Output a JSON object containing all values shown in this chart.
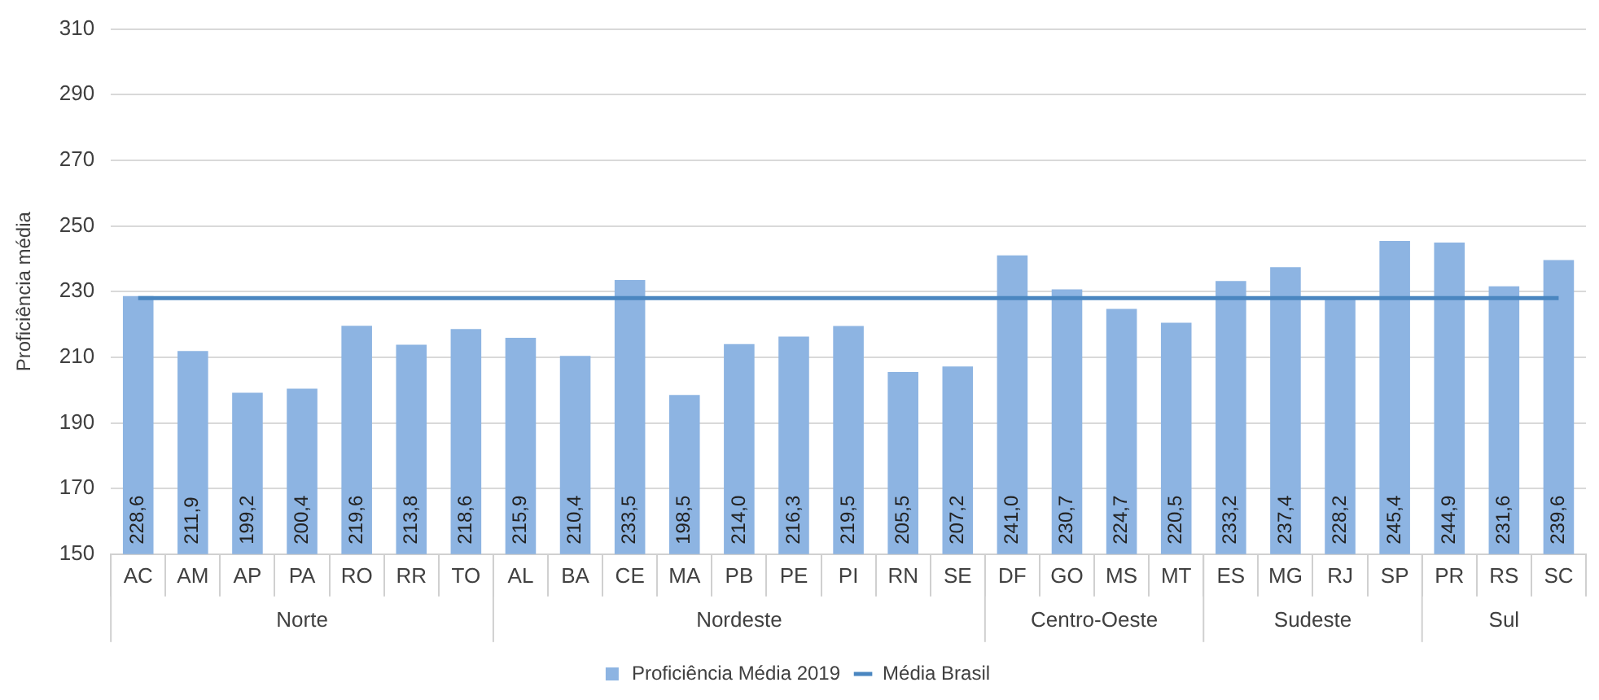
{
  "chart_data": {
    "type": "bar",
    "ylabel": "Proficiência média",
    "categories": [
      "AC",
      "AM",
      "AP",
      "PA",
      "RO",
      "RR",
      "TO",
      "AL",
      "BA",
      "CE",
      "MA",
      "PB",
      "PE",
      "PI",
      "RN",
      "SE",
      "DF",
      "GO",
      "MS",
      "MT",
      "ES",
      "MG",
      "RJ",
      "SP",
      "PR",
      "RS",
      "SC"
    ],
    "series": [
      {
        "name": "Proficiência Média 2019",
        "color": "#8db4e2",
        "values": [
          228.6,
          211.9,
          199.2,
          200.4,
          219.6,
          213.8,
          218.6,
          215.9,
          210.4,
          233.5,
          198.5,
          214.0,
          216.3,
          219.5,
          205.5,
          207.2,
          241.0,
          230.7,
          224.7,
          220.5,
          233.2,
          237.4,
          228.2,
          245.4,
          244.9,
          231.6,
          239.6
        ],
        "value_labels": [
          "228,6",
          "211,9",
          "199,2",
          "200,4",
          "219,6",
          "213,8",
          "218,6",
          "215,9",
          "210,4",
          "233,5",
          "198,5",
          "214,0",
          "216,3",
          "219,5",
          "205,5",
          "207,2",
          "241,0",
          "230,7",
          "224,7",
          "220,5",
          "233,2",
          "237,4",
          "228,2",
          "245,4",
          "244,9",
          "231,6",
          "239,6"
        ]
      },
      {
        "name": "Média Brasil",
        "type": "line",
        "color": "#4a86c0",
        "values": [
          228,
          228,
          228,
          228,
          228,
          228,
          228,
          228,
          228,
          228,
          228,
          228,
          228,
          228,
          228,
          228,
          228,
          228,
          228,
          228,
          228,
          228,
          228,
          228,
          228,
          228,
          228
        ]
      }
    ],
    "ylim": [
      150,
      310
    ],
    "yticks": [
      150,
      170,
      190,
      210,
      230,
      250,
      270,
      290,
      310
    ],
    "grid": "y",
    "legend": "bottom",
    "marker": "none",
    "annotations": [
      "Norte",
      "Nordeste",
      "Centro-Oeste",
      "Sudeste",
      "Sul"
    ]
  }
}
